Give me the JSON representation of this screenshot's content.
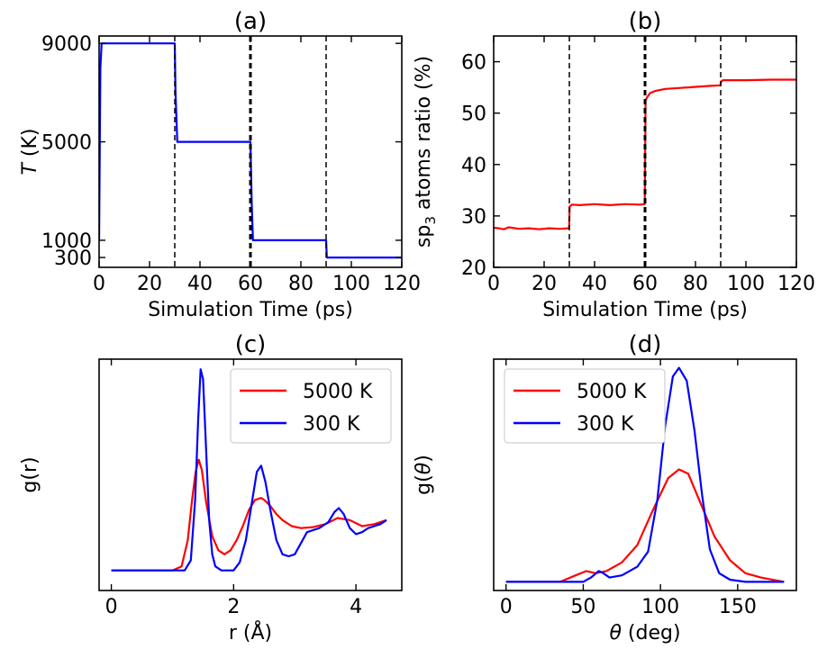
{
  "chart_data": [
    {
      "id": "a",
      "type": "line",
      "title": "(a)",
      "xlabel": "Simulation Time (ps)",
      "ylabel": "T (K)",
      "xlim": [
        0,
        120
      ],
      "ylim": [
        -100,
        9300
      ],
      "xticks": [
        0,
        20,
        40,
        60,
        80,
        100,
        120
      ],
      "yticks": [
        300,
        1000,
        5000,
        9000
      ],
      "series": [
        {
          "color": "#0000ff",
          "x": [
            0,
            0.5,
            1,
            30,
            30.3,
            31,
            60,
            60.5,
            61,
            90,
            90.3,
            120
          ],
          "y": [
            1000,
            8000,
            9000,
            9000,
            7000,
            5000,
            5000,
            2500,
            1000,
            1000,
            300,
            300
          ]
        }
      ],
      "vlines": [
        {
          "x": 30,
          "style": "dashed",
          "width": 1.5
        },
        {
          "x": 60,
          "style": "dashed",
          "width": 3
        },
        {
          "x": 90,
          "style": "dashed",
          "width": 1.5
        }
      ],
      "grid": false
    },
    {
      "id": "b",
      "type": "line",
      "title": "(b)",
      "xlabel": "Simulation Time (ps)",
      "ylabel": "sp3 atoms ratio (%)",
      "xlim": [
        0,
        120
      ],
      "ylim": [
        20,
        65
      ],
      "xticks": [
        0,
        20,
        40,
        60,
        80,
        100,
        120
      ],
      "yticks": [
        20,
        30,
        40,
        50,
        60
      ],
      "series": [
        {
          "color": "#ff0000",
          "x": [
            0,
            2,
            4,
            6,
            10,
            14,
            18,
            22,
            26,
            29.9,
            30.1,
            31,
            34,
            40,
            46,
            52,
            58,
            59.9,
            60.2,
            61,
            62,
            64,
            68,
            74,
            80,
            86,
            89.9,
            90.2,
            91,
            100,
            110,
            120
          ],
          "y": [
            27.7,
            27.6,
            27.4,
            27.8,
            27.5,
            27.6,
            27.4,
            27.6,
            27.5,
            27.6,
            31.8,
            32.2,
            32.1,
            32.3,
            32.1,
            32.3,
            32.2,
            32.3,
            52.5,
            53.2,
            53.9,
            54.3,
            54.7,
            54.9,
            55.1,
            55.3,
            55.4,
            56.2,
            56.4,
            56.4,
            56.5,
            56.5
          ]
        }
      ],
      "vlines": [
        {
          "x": 30,
          "style": "dashed",
          "width": 1.5
        },
        {
          "x": 60,
          "style": "dashed",
          "width": 3
        },
        {
          "x": 90,
          "style": "dashed",
          "width": 1.5
        }
      ],
      "grid": false
    },
    {
      "id": "c",
      "type": "line",
      "title": "(c)",
      "xlabel": "r (Å)",
      "ylabel": "g(r)",
      "xlim": [
        -0.2,
        4.75
      ],
      "ylim": [
        -0.1,
        1.05
      ],
      "xticks": [
        0,
        2,
        4
      ],
      "yticks": [],
      "legend": "top-right",
      "series": [
        {
          "name": "5000 K",
          "color": "#ff0000",
          "x": [
            0,
            1.0,
            1.15,
            1.25,
            1.32,
            1.38,
            1.43,
            1.48,
            1.55,
            1.65,
            1.75,
            1.85,
            1.95,
            2.05,
            2.15,
            2.25,
            2.35,
            2.45,
            2.5,
            2.6,
            2.7,
            2.8,
            2.95,
            3.1,
            3.3,
            3.5,
            3.7,
            3.9,
            4.1,
            4.3,
            4.5
          ],
          "y": [
            0,
            0,
            0.02,
            0.15,
            0.35,
            0.49,
            0.55,
            0.5,
            0.34,
            0.17,
            0.1,
            0.08,
            0.1,
            0.15,
            0.22,
            0.3,
            0.35,
            0.36,
            0.35,
            0.32,
            0.28,
            0.25,
            0.22,
            0.21,
            0.215,
            0.23,
            0.26,
            0.25,
            0.22,
            0.23,
            0.25
          ]
        },
        {
          "name": "300 K",
          "color": "#0000ff",
          "x": [
            0,
            1.2,
            1.3,
            1.37,
            1.42,
            1.46,
            1.5,
            1.55,
            1.6,
            1.65,
            1.7,
            1.8,
            1.9,
            2.0,
            2.1,
            2.2,
            2.3,
            2.38,
            2.45,
            2.52,
            2.6,
            2.7,
            2.8,
            2.9,
            3.0,
            3.2,
            3.4,
            3.55,
            3.65,
            3.72,
            3.8,
            3.9,
            4.0,
            4.1,
            4.2,
            4.3,
            4.4,
            4.5
          ],
          "y": [
            0,
            0,
            0.05,
            0.35,
            0.75,
            1.0,
            0.95,
            0.6,
            0.25,
            0.08,
            0.02,
            0.0,
            0.0,
            0.0,
            0.04,
            0.15,
            0.34,
            0.49,
            0.52,
            0.44,
            0.3,
            0.15,
            0.08,
            0.07,
            0.08,
            0.19,
            0.21,
            0.24,
            0.29,
            0.31,
            0.28,
            0.21,
            0.18,
            0.19,
            0.21,
            0.22,
            0.23,
            0.25
          ]
        }
      ],
      "grid": false
    },
    {
      "id": "d",
      "type": "line",
      "title": "(d)",
      "xlabel": "θ (deg)",
      "ylabel": "g(θ)",
      "xlim": [
        -8,
        188
      ],
      "ylim": [
        -0.04,
        1.03
      ],
      "xticks": [
        0,
        50,
        100,
        150
      ],
      "yticks": [],
      "legend": "top-left",
      "series": [
        {
          "name": "5000 K",
          "color": "#ff0000",
          "x": [
            0,
            35,
            45,
            52,
            58,
            65,
            75,
            85,
            95,
            105,
            112,
            118,
            125,
            135,
            145,
            155,
            165,
            180
          ],
          "y": [
            0,
            0,
            0.03,
            0.05,
            0.04,
            0.05,
            0.09,
            0.17,
            0.33,
            0.48,
            0.52,
            0.5,
            0.38,
            0.21,
            0.1,
            0.04,
            0.02,
            0.0
          ]
        },
        {
          "name": "300 K",
          "color": "#0000ff",
          "x": [
            0,
            50,
            55,
            60,
            63,
            67,
            75,
            85,
            92,
            98,
            103,
            108,
            112,
            117,
            122,
            127,
            132,
            138,
            145,
            155,
            180
          ],
          "y": [
            0,
            0,
            0.02,
            0.05,
            0.04,
            0.02,
            0.03,
            0.07,
            0.14,
            0.38,
            0.72,
            0.95,
            0.99,
            0.93,
            0.7,
            0.4,
            0.15,
            0.04,
            0.01,
            0.0,
            0.0
          ]
        }
      ],
      "grid": false
    }
  ]
}
